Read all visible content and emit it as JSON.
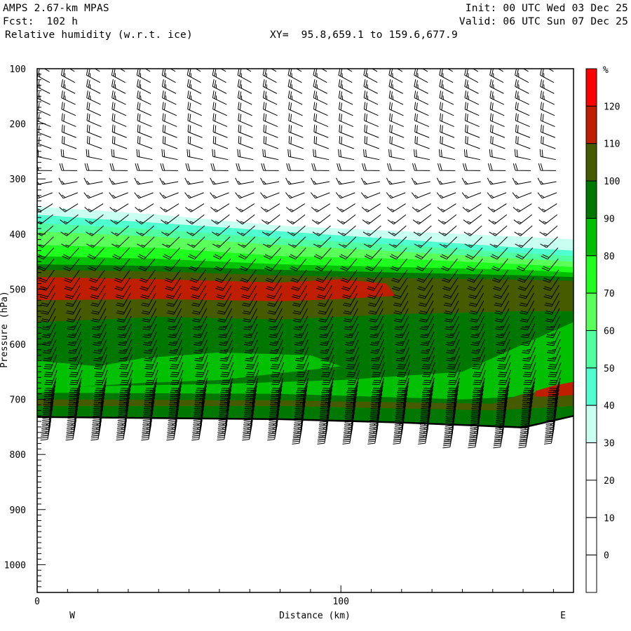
{
  "header": {
    "model": "AMPS 2.67-km MPAS",
    "forecast": "Fcst:  102 h",
    "field": "Relative humidity (w.r.t. ice)",
    "xy": "XY=  95.8,659.1 to 159.6,677.9",
    "init": "Init: 00 UTC Wed 03 Dec 25",
    "valid": "Valid: 06 UTC Sun 07 Dec 25"
  },
  "chart_data": {
    "type": "heatmap",
    "title": "Relative humidity (w.r.t. ice)",
    "xlabel": "Distance (km)",
    "ylabel": "Pressure (hPa)",
    "xlim": [
      0,
      176.6
    ],
    "ylim": [
      1050,
      100
    ],
    "x_ticks": [
      {
        "value": 0,
        "label": "0"
      },
      {
        "value": 100,
        "label": "100"
      }
    ],
    "y_ticks": [
      {
        "value": 100,
        "label": "100"
      },
      {
        "value": 200,
        "label": "200"
      },
      {
        "value": 300,
        "label": "300"
      },
      {
        "value": 400,
        "label": "400"
      },
      {
        "value": 500,
        "label": "500"
      },
      {
        "value": 600,
        "label": "600"
      },
      {
        "value": 700,
        "label": "700"
      },
      {
        "value": 800,
        "label": "800"
      },
      {
        "value": 900,
        "label": "900"
      },
      {
        "value": 1000,
        "label": "1000"
      }
    ],
    "endpoints": {
      "left": "W",
      "right": "E"
    },
    "colorbar": {
      "unit": "%",
      "labels": [
        "120",
        "110",
        "100",
        "90",
        "80",
        "70",
        "60",
        "50",
        "40",
        "30",
        "20",
        "10",
        "0"
      ],
      "bins": [
        "#ff0000",
        "#c01e00",
        "#465a00",
        "#007800",
        "#00c000",
        "#1eff1e",
        "#5aff5a",
        "#50ffa0",
        "#50ffd0",
        "#c8fff0",
        "#ffffff",
        "#ffffff",
        "#ffffff",
        "#ffffff"
      ]
    },
    "x_samples_km": [
      0,
      40,
      80,
      120,
      160,
      176.6
    ],
    "terrain_hpa": [
      732,
      734,
      736,
      742,
      751,
      730
    ],
    "rh_layers": [
      {
        "rh": 30,
        "color": "#c8fff0",
        "top_hpa": [
          350,
          365,
          385,
          395,
          405,
          410
        ]
      },
      {
        "rh": 40,
        "color": "#50ffd0",
        "top_hpa": [
          365,
          380,
          395,
          410,
          425,
          430
        ]
      },
      {
        "rh": 50,
        "color": "#50ffa0",
        "top_hpa": [
          380,
          392,
          408,
          420,
          435,
          440
        ]
      },
      {
        "rh": 60,
        "color": "#5aff5a",
        "top_hpa": [
          395,
          405,
          420,
          432,
          445,
          450
        ]
      },
      {
        "rh": 70,
        "color": "#1eff1e",
        "top_hpa": [
          420,
          425,
          440,
          445,
          455,
          460
        ]
      },
      {
        "rh": 80,
        "color": "#00c000",
        "top_hpa": [
          440,
          445,
          455,
          460,
          465,
          470
        ]
      },
      {
        "rh": 90,
        "color": "#007800",
        "top_hpa": [
          455,
          458,
          465,
          470,
          475,
          478
        ]
      },
      {
        "rh": 100,
        "color": "#465a00",
        "top_hpa": [
          465,
          468,
          475,
          480,
          483,
          485
        ]
      }
    ],
    "rh_features": [
      {
        "rh": 110,
        "color": "#c01e00",
        "x_km": [
          0,
          40,
          80,
          100,
          115,
          118,
          100,
          80,
          40,
          0
        ],
        "p_hpa": [
          478,
          482,
          488,
          482,
          490,
          512,
          518,
          522,
          518,
          520
        ]
      },
      {
        "rh": 90,
        "color": "#007800",
        "x_km": [
          0,
          40,
          80,
          120,
          160,
          176.6,
          176.6,
          160,
          120,
          80,
          40,
          0
        ],
        "p_hpa": [
          560,
          550,
          555,
          545,
          540,
          540,
          740,
          740,
          740,
          740,
          740,
          740
        ]
      },
      {
        "rh": 80,
        "color": "#00c000",
        "x_km": [
          0,
          20,
          35,
          60,
          90,
          100,
          60,
          35,
          20,
          0
        ],
        "p_hpa": [
          630,
          640,
          625,
          615,
          620,
          640,
          665,
          670,
          675,
          680
        ]
      },
      {
        "rh": 80,
        "color": "#00c000",
        "x_km": [
          0,
          60,
          100,
          140,
          160,
          176.6,
          176.6,
          140,
          100,
          60,
          0
        ],
        "p_hpa": [
          678,
          672,
          665,
          650,
          600,
          560,
          720,
          712,
          710,
          708,
          705
        ]
      },
      {
        "rh": 90,
        "color": "#007800",
        "x_km": [
          0,
          80,
          140,
          176.6,
          176.6,
          0
        ],
        "p_hpa": [
          688,
          690,
          700,
          690,
          740,
          740
        ]
      },
      {
        "rh": 100,
        "color": "#465a00",
        "x_km": [
          0,
          80,
          150,
          160,
          176.6,
          176.6,
          150,
          80,
          0
        ],
        "p_hpa": [
          700,
          702,
          708,
          690,
          678,
          712,
          720,
          712,
          712
        ]
      },
      {
        "rh": 90,
        "color": "#007800",
        "x_km": [
          0,
          176.6,
          176.6,
          0
        ],
        "p_hpa": [
          716,
          722,
          760,
          760
        ]
      },
      {
        "rh": 110,
        "color": "#c01e00",
        "x_km": [
          164,
          170,
          176.6,
          176.6,
          170,
          164
        ],
        "p_hpa": [
          685,
          675,
          668,
          692,
          695,
          695
        ]
      }
    ],
    "wind_profile": [
      {
        "p_hpa": 100,
        "dir_deg": 300,
        "spd_kt": 25
      },
      {
        "p_hpa": 250,
        "dir_deg": 290,
        "spd_kt": 20
      },
      {
        "p_hpa": 350,
        "dir_deg": 235,
        "spd_kt": 15
      },
      {
        "p_hpa": 500,
        "dir_deg": 210,
        "spd_kt": 20
      },
      {
        "p_hpa": 650,
        "dir_deg": 200,
        "spd_kt": 30
      },
      {
        "p_hpa": 740,
        "dir_deg": 190,
        "spd_kt": 45
      }
    ]
  }
}
